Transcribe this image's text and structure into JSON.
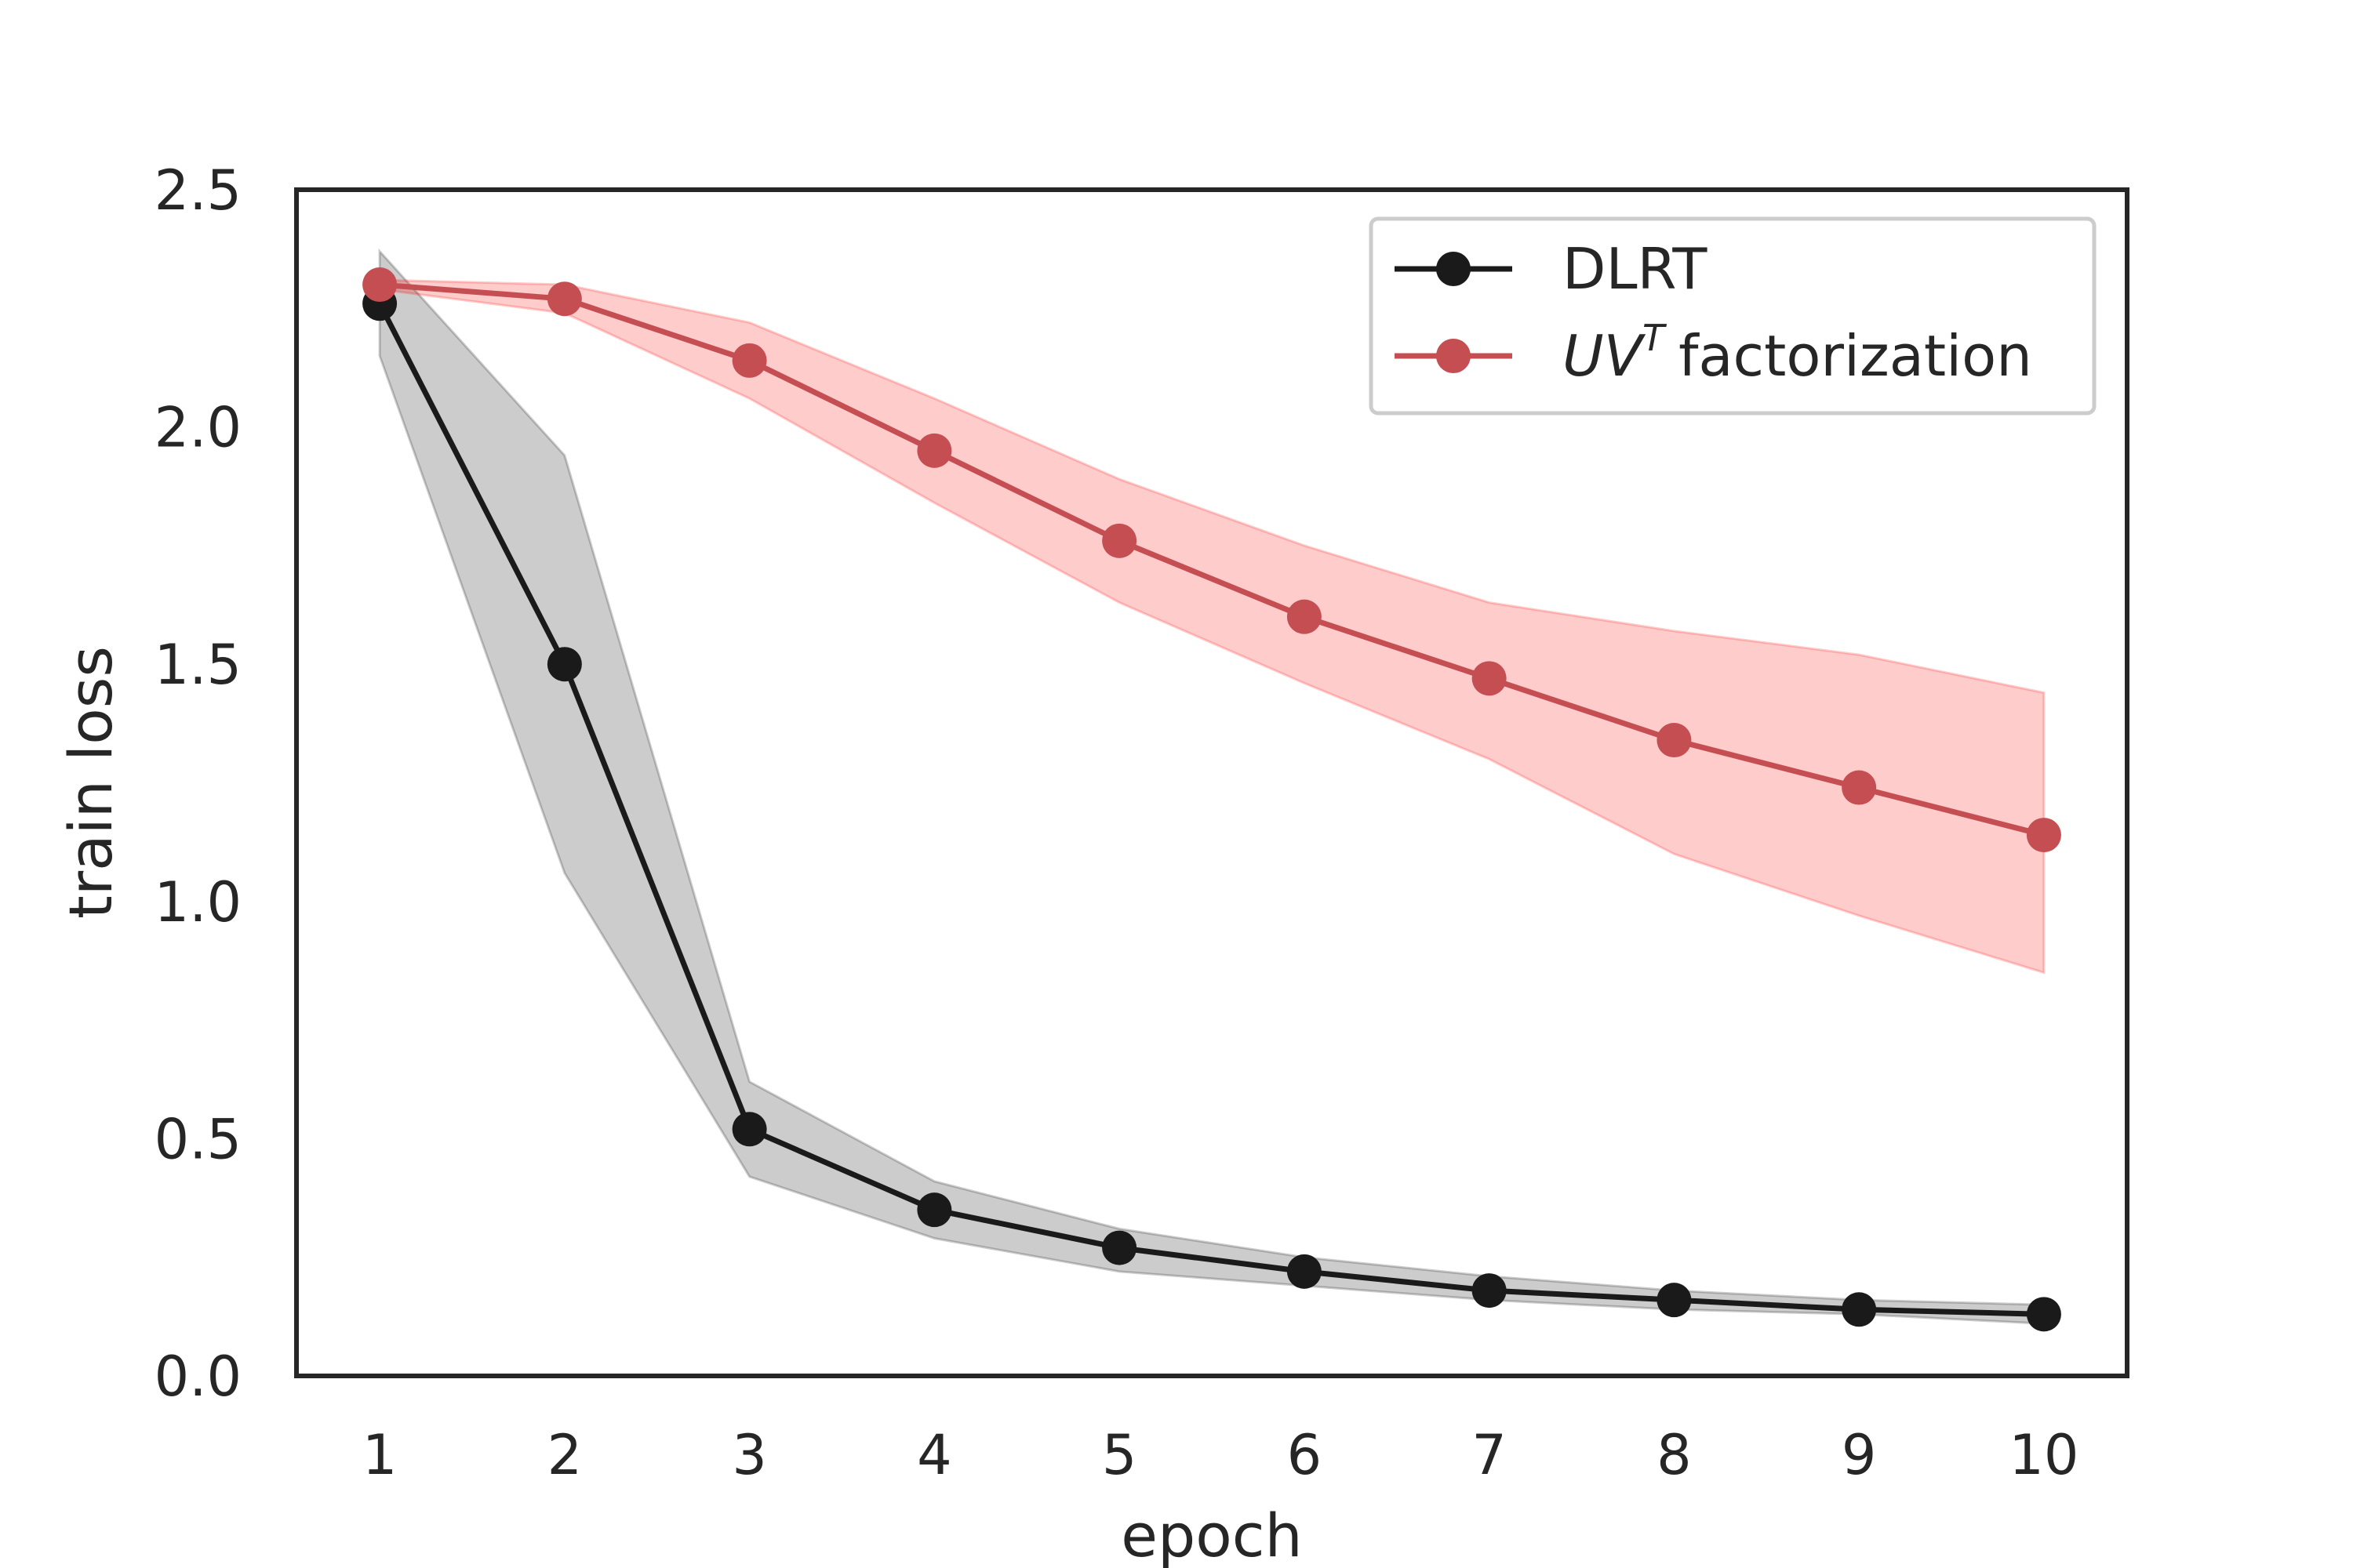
{
  "chart_data": {
    "type": "line",
    "title": "",
    "xlabel": "epoch",
    "ylabel": "train loss",
    "x": [
      1,
      2,
      3,
      4,
      5,
      6,
      7,
      8,
      9,
      10
    ],
    "xlim": [
      0.55,
      10.45
    ],
    "ylim": [
      0,
      2.5
    ],
    "xticks": [
      "1",
      "2",
      "3",
      "4",
      "5",
      "6",
      "7",
      "8",
      "9",
      "10"
    ],
    "yticks": [
      "0.0",
      "0.5",
      "1.0",
      "1.5",
      "2.0",
      "2.5"
    ],
    "ytick_values": [
      0,
      0.5,
      1.0,
      1.5,
      2.0,
      2.5
    ],
    "grid": false,
    "legend_position": "top-right",
    "series": [
      {
        "name": "DLRT",
        "color": "#1a1a1a",
        "band_color": "#000000",
        "values": [
          2.26,
          1.5,
          0.52,
          0.35,
          0.27,
          0.22,
          0.18,
          0.16,
          0.14,
          0.13
        ],
        "lower": [
          2.15,
          1.06,
          0.42,
          0.29,
          0.22,
          0.19,
          0.16,
          0.14,
          0.13,
          0.11
        ],
        "upper": [
          2.37,
          1.94,
          0.62,
          0.41,
          0.31,
          0.25,
          0.21,
          0.18,
          0.16,
          0.15
        ]
      },
      {
        "name": "factorization",
        "name_math_base": "UV",
        "name_math_sup": "T",
        "color": "#c44e52",
        "band_color": "#ff0000",
        "values": [
          2.3,
          2.27,
          2.14,
          1.95,
          1.76,
          1.6,
          1.47,
          1.34,
          1.24,
          1.14
        ],
        "lower": [
          2.29,
          2.24,
          2.06,
          1.84,
          1.63,
          1.46,
          1.3,
          1.1,
          0.97,
          0.85
        ],
        "upper": [
          2.31,
          2.3,
          2.22,
          2.06,
          1.89,
          1.75,
          1.63,
          1.57,
          1.52,
          1.44
        ]
      }
    ]
  }
}
